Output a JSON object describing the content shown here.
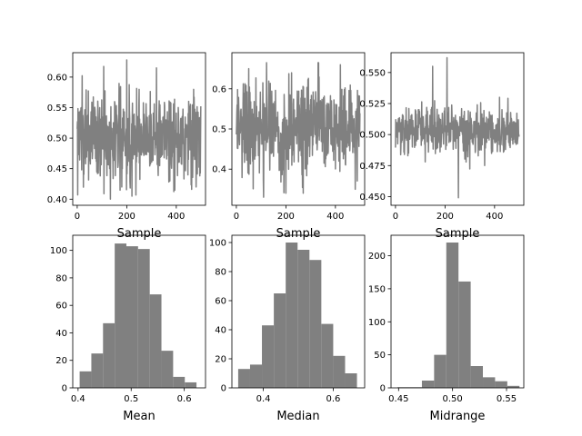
{
  "figure": {
    "background": "#ffffff",
    "mark_color": "#808080"
  },
  "chart_data": [
    {
      "type": "line",
      "panel": "top-left",
      "title": "",
      "xlabel": "Sample",
      "ylabel": "",
      "xlim": [
        -18,
        518
      ],
      "ylim": [
        0.39,
        0.64
      ],
      "xticks": [
        0,
        200,
        400
      ],
      "xticklabels": [
        "0",
        "200",
        "400"
      ],
      "yticks": [
        0.4,
        0.45,
        0.5,
        0.55,
        0.6
      ],
      "yticklabels": [
        "0.40",
        "0.45",
        "0.50",
        "0.55",
        "0.60"
      ],
      "grid": false,
      "series": [
        {
          "n": 500,
          "mean": 0.503,
          "spread": 0.038,
          "min": 0.4,
          "max": 0.628,
          "extremes": [
            [
              200,
              0.628
            ],
            [
              134,
              0.4
            ],
            [
              180,
              0.42
            ],
            [
              320,
              0.615
            ],
            [
              250,
              0.58
            ],
            [
              470,
              0.58
            ],
            [
              480,
              0.42
            ]
          ],
          "color": "#808080"
        }
      ]
    },
    {
      "type": "line",
      "panel": "top-middle",
      "title": "",
      "xlabel": "Sample",
      "ylabel": "",
      "xlim": [
        -18,
        518
      ],
      "ylim": [
        0.31,
        0.69
      ],
      "xticks": [
        0,
        200,
        400
      ],
      "xticklabels": [
        "0",
        "200",
        "400"
      ],
      "yticks": [
        0.4,
        0.5,
        0.6
      ],
      "yticklabels": [
        "0.4",
        "0.5",
        "0.6"
      ],
      "grid": false,
      "series": [
        {
          "n": 500,
          "mean": 0.505,
          "spread": 0.058,
          "min": 0.33,
          "max": 0.665,
          "extremes": [
            [
              330,
              0.665
            ],
            [
              110,
              0.33
            ],
            [
              200,
              0.34
            ],
            [
              270,
              0.34
            ],
            [
              420,
              0.66
            ],
            [
              50,
              0.65
            ],
            [
              480,
              0.35
            ]
          ],
          "color": "#808080"
        }
      ]
    },
    {
      "type": "line",
      "panel": "top-right",
      "title": "",
      "xlabel": "Sample",
      "ylabel": "",
      "xlim": [
        -18,
        518
      ],
      "ylim": [
        0.443,
        0.566
      ],
      "xticks": [
        0,
        200,
        400
      ],
      "xticklabels": [
        "0",
        "200",
        "400"
      ],
      "yticks": [
        0.45,
        0.475,
        0.5,
        0.525,
        0.55
      ],
      "yticklabels": [
        "0.450",
        "0.475",
        "0.500",
        "0.525",
        "0.550"
      ],
      "grid": false,
      "series": [
        {
          "n": 500,
          "mean": 0.503,
          "spread": 0.009,
          "min": 0.449,
          "max": 0.562,
          "extremes": [
            [
              254,
              0.449
            ],
            [
              208,
              0.562
            ],
            [
              150,
              0.555
            ],
            [
              80,
              0.52
            ],
            [
              420,
              0.53
            ],
            [
              360,
              0.475
            ],
            [
              120,
              0.478
            ]
          ],
          "color": "#808080"
        }
      ]
    },
    {
      "type": "bar",
      "panel": "bottom-left",
      "title": "",
      "xlabel": "Mean",
      "ylabel": "",
      "xlim": [
        0.39,
        0.64
      ],
      "ylim": [
        0,
        111
      ],
      "xticks": [
        0.4,
        0.5,
        0.6
      ],
      "xticklabels": [
        "0.4",
        "0.5",
        "0.6"
      ],
      "yticks": [
        0,
        20,
        40,
        60,
        80,
        100
      ],
      "yticklabels": [
        "0",
        "20",
        "40",
        "60",
        "80",
        "100"
      ],
      "grid": false,
      "bin_edges": [
        0.403,
        0.425,
        0.447,
        0.469,
        0.491,
        0.513,
        0.535,
        0.557,
        0.579,
        0.601,
        0.623
      ],
      "values": [
        12,
        25,
        47,
        105,
        103,
        101,
        68,
        27,
        8,
        4
      ],
      "color": "#808080"
    },
    {
      "type": "bar",
      "panel": "bottom-middle",
      "title": "",
      "xlabel": "Median",
      "ylabel": "",
      "xlim": [
        0.31,
        0.69
      ],
      "ylim": [
        0,
        105
      ],
      "xticks": [
        0.4,
        0.6
      ],
      "xticklabels": [
        "0.4",
        "0.6"
      ],
      "yticks": [
        0,
        20,
        40,
        60,
        80,
        100
      ],
      "yticklabels": [
        "0",
        "20",
        "40",
        "60",
        "80",
        "100"
      ],
      "grid": false,
      "bin_edges": [
        0.328,
        0.362,
        0.396,
        0.43,
        0.464,
        0.498,
        0.532,
        0.566,
        0.6,
        0.634,
        0.668
      ],
      "values": [
        13,
        16,
        43,
        65,
        100,
        95,
        88,
        44,
        22,
        10
      ],
      "color": "#808080"
    },
    {
      "type": "bar",
      "panel": "bottom-right",
      "title": "",
      "xlabel": "Midrange",
      "ylabel": "",
      "xlim": [
        0.443,
        0.566
      ],
      "ylim": [
        0,
        231
      ],
      "xticks": [
        0.45,
        0.5,
        0.55
      ],
      "xticklabels": [
        "0.45",
        "0.50",
        "0.55"
      ],
      "yticks": [
        0,
        50,
        100,
        150,
        200
      ],
      "yticklabels": [
        "0",
        "50",
        "100",
        "150",
        "200"
      ],
      "grid": false,
      "bin_edges": [
        0.449,
        0.4603,
        0.4716,
        0.4829,
        0.4942,
        0.5055,
        0.5168,
        0.5281,
        0.5394,
        0.5507,
        0.562
      ],
      "values": [
        1,
        1,
        11,
        50,
        220,
        161,
        33,
        16,
        10,
        3
      ],
      "color": "#808080"
    }
  ]
}
